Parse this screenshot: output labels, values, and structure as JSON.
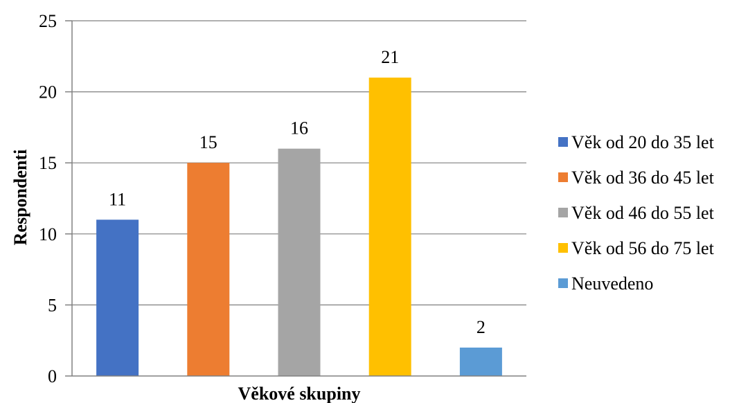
{
  "chart_data": {
    "type": "bar",
    "title": "",
    "xlabel": "Věkové skupiny",
    "ylabel": "Respondenti",
    "ylim": [
      0,
      25
    ],
    "yticks": [
      0,
      5,
      10,
      15,
      20,
      25
    ],
    "grid": true,
    "legend_position": "right",
    "series": [
      {
        "name": "Věk od 20 do 35 let",
        "value": 11,
        "label": "11",
        "color": "#4472C4"
      },
      {
        "name": "Věk od 36 do 45 let",
        "value": 15,
        "label": "15",
        "color": "#ED7D31"
      },
      {
        "name": "Věk od 46 do 55 let",
        "value": 16,
        "label": "16",
        "color": "#A5A5A5"
      },
      {
        "name": "Věk od 56 do 75 let",
        "value": 21,
        "label": "21",
        "color": "#FFC000"
      },
      {
        "name": "Neuvedeno",
        "value": 2,
        "label": "2",
        "color": "#5B9BD5"
      }
    ]
  }
}
